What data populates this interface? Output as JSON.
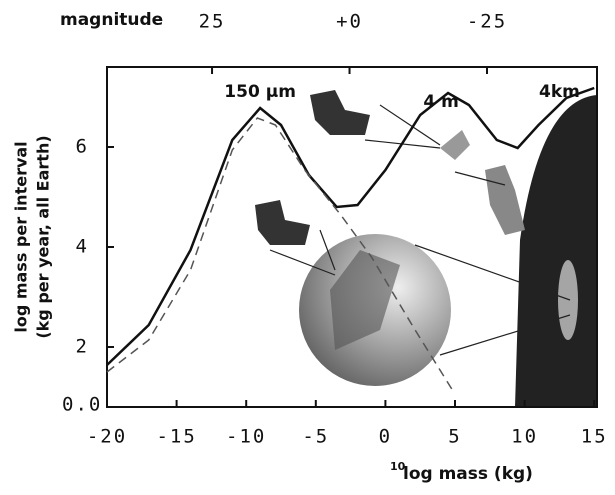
{
  "chart_data": {
    "type": "line",
    "x_label": "log mass (kg)",
    "x_label_superscript": "10",
    "y_label": [
      "log mass per interval",
      "(kg per year, all Earth)"
    ],
    "x2_label": "magnitude",
    "y_bottom_label": "0.0",
    "annotations": [
      {
        "text": "150 µm",
        "x": -9,
        "y": 7.1
      },
      {
        "text": "4 m",
        "x": 4,
        "y": 6.9
      },
      {
        "text": "4km",
        "x": 12.5,
        "y": 7.1
      }
    ],
    "xlim": [
      -20,
      15.2
    ],
    "xticks": [
      -20,
      -15,
      -10,
      -5,
      0,
      5,
      10,
      15
    ],
    "ylim": [
      0.8,
      7.6
    ],
    "yticks": [
      2,
      4,
      6
    ],
    "x2lim": [
      44.1,
      -45
    ],
    "x2ticks": [
      25,
      {
        "value": 0,
        "label": "+0"
      },
      -25
    ],
    "series": [
      {
        "color": "#111111",
        "dash": false,
        "x": [
          -20,
          -17,
          -14,
          -11,
          -9,
          -7.5,
          -5.5,
          -3.5,
          -2,
          0,
          2.5,
          4.5,
          6,
          8,
          9.5,
          11,
          13,
          15
        ],
        "values": [
          1.64,
          2.44,
          3.94,
          6.14,
          6.78,
          6.44,
          5.44,
          4.8,
          4.84,
          5.54,
          6.64,
          7.08,
          6.84,
          6.14,
          5.98,
          6.44,
          6.98,
          7.18
        ]
      },
      {
        "color": "#555555",
        "dash": true,
        "x": [
          -20,
          -17,
          -14,
          -11,
          -9.2,
          -7.9,
          -5.8,
          -3.2,
          -1,
          2,
          4.9
        ],
        "values": [
          1.5,
          2.14,
          3.54,
          5.94,
          6.58,
          6.44,
          5.54,
          4.64,
          3.8,
          2.4,
          1.1
        ]
      }
    ]
  }
}
